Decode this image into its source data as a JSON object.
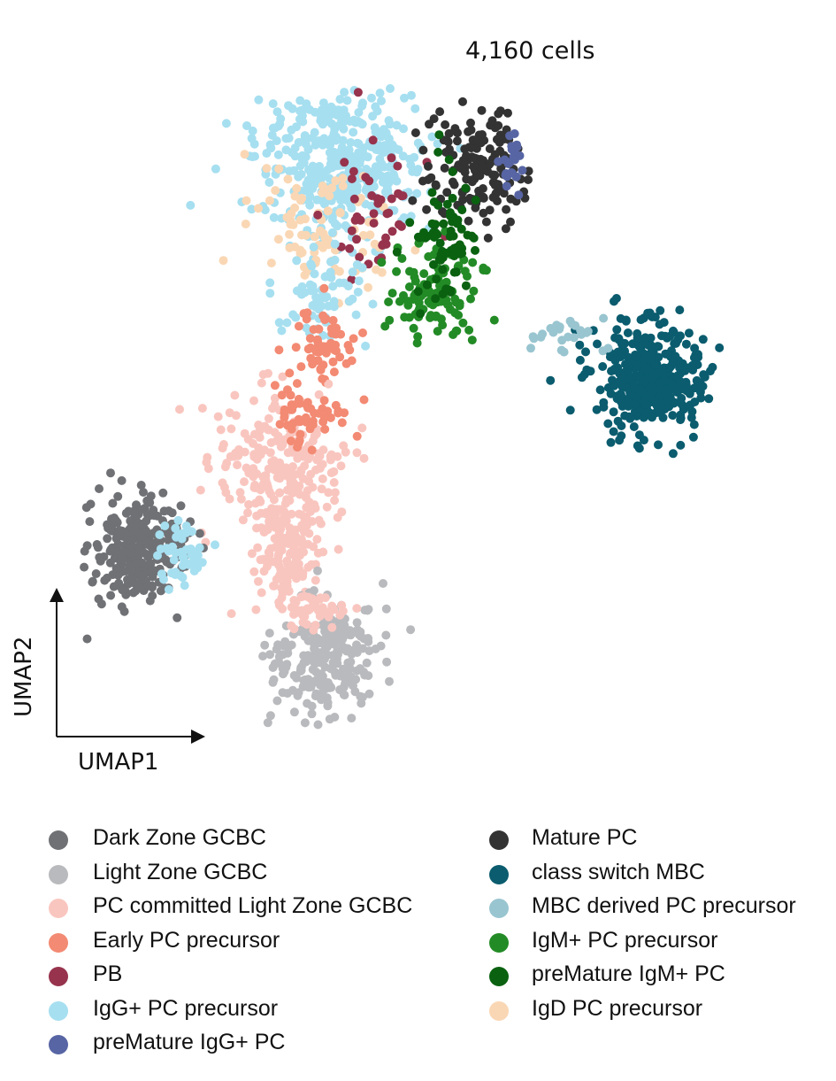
{
  "chart_data": {
    "type": "scatter",
    "title": "4,160 cells",
    "xlabel": "UMAP1",
    "ylabel": "UMAP2",
    "axes_style": "arrows-only, no ticks",
    "grid": false,
    "legend_position": "bottom",
    "series": [
      {
        "name": "Dark Zone GCBC",
        "color": "#6f7175",
        "cluster": "lower-left blob"
      },
      {
        "name": "Light Zone GCBC",
        "color": "#b9babd",
        "cluster": "bottom-center blob"
      },
      {
        "name": "PC committed Light Zone GCBC",
        "color": "#f9c6bf",
        "cluster": "central bridge"
      },
      {
        "name": "Early PC precursor",
        "color": "#f38a73",
        "cluster": "upper bridge"
      },
      {
        "name": "PB",
        "color": "#97334d",
        "cluster": "upper-center"
      },
      {
        "name": "IgG+ PC precursor",
        "color": "#a6dff0",
        "cluster": "top-left blob"
      },
      {
        "name": "preMature IgG+ PC",
        "color": "#5765a4",
        "cluster": "top-right edge"
      },
      {
        "name": "Mature PC",
        "color": "#333333",
        "cluster": "top-right blob"
      },
      {
        "name": "class switch MBC",
        "color": "#0a5c6e",
        "cluster": "right blob"
      },
      {
        "name": "MBC derived PC precursor",
        "color": "#99c5d0",
        "cluster": "right strand"
      },
      {
        "name": "IgM+ PC precursor",
        "color": "#238b26",
        "cluster": "upper-center"
      },
      {
        "name": "preMature IgM+ PC",
        "color": "#0a6110",
        "cluster": "upper-center"
      },
      {
        "name": "IgD PC precursor",
        "color": "#fad7b4",
        "cluster": "top-left"
      }
    ]
  },
  "legend": {
    "left": [
      {
        "label": "Dark Zone GCBC",
        "color": "#6f7175"
      },
      {
        "label": "Light Zone GCBC",
        "color": "#b9babd"
      },
      {
        "label": "PC committed Light Zone GCBC",
        "color": "#f9c6bf"
      },
      {
        "label": "Early PC precursor",
        "color": "#f38a73"
      },
      {
        "label": "PB",
        "color": "#97334d"
      },
      {
        "label": "IgG+ PC precursor",
        "color": "#a6dff0"
      },
      {
        "label": "preMature IgG+ PC",
        "color": "#5765a4"
      }
    ],
    "right": [
      {
        "label": "Mature PC",
        "color": "#333333"
      },
      {
        "label": "class switch MBC",
        "color": "#0a5c6e"
      },
      {
        "label": "MBC derived PC precursor",
        "color": "#99c5d0"
      },
      {
        "label": "IgM+ PC precursor",
        "color": "#238b26"
      },
      {
        "label": "preMature IgM+ PC",
        "color": "#0a6110"
      },
      {
        "label": "IgD PC precursor",
        "color": "#fad7b4"
      }
    ]
  }
}
